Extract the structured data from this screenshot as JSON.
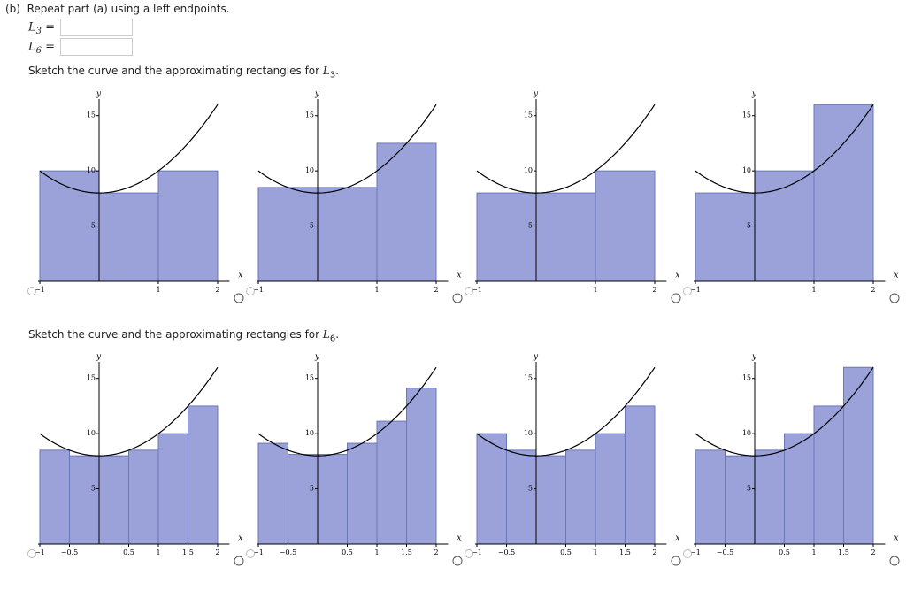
{
  "header": {
    "part": "(b)",
    "text": "Repeat part (a) using a left endpoints."
  },
  "fields": [
    {
      "symbol": "L",
      "sub": "3",
      "eq": "="
    },
    {
      "symbol": "L",
      "sub": "6",
      "eq": "="
    }
  ],
  "sections": [
    {
      "prompt": "Sketch the curve and the approximating rectangles for",
      "symbol": "L",
      "sub": "3",
      "end": ".",
      "charts": [
        {
          "type": "bar",
          "x_label": "x",
          "y_label": "y",
          "curve_coefficients": [
            8,
            0,
            2
          ],
          "bins": [
            -1,
            0,
            1,
            2
          ],
          "values": [
            10,
            8,
            10
          ],
          "xlim": [
            -1,
            2.2
          ],
          "ylim": [
            0,
            16.5
          ],
          "xticks": [
            {
              "value": -1,
              "label": "−1"
            },
            1,
            2
          ],
          "yticks": [
            5,
            10,
            15
          ],
          "color": "#9aa2d9"
        },
        {
          "type": "bar",
          "x_label": "x",
          "y_label": "y",
          "curve_coefficients": [
            8,
            0,
            2
          ],
          "bins": [
            -1,
            0,
            1,
            2
          ],
          "values": [
            8.5,
            8.5,
            12.5
          ],
          "xlim": [
            -1,
            2.2
          ],
          "ylim": [
            0,
            16.5
          ],
          "xticks": [
            {
              "value": -1,
              "label": "−1"
            },
            1,
            2
          ],
          "yticks": [
            5,
            10,
            15
          ],
          "color": "#9aa2d9"
        },
        {
          "type": "bar",
          "x_label": "x",
          "y_label": "y",
          "curve_coefficients": [
            8,
            0,
            2
          ],
          "bins": [
            -1,
            0,
            1,
            2
          ],
          "values": [
            8,
            8,
            10
          ],
          "xlim": [
            -1,
            2.2
          ],
          "ylim": [
            0,
            16.5
          ],
          "xticks": [
            {
              "value": -1,
              "label": "−1"
            },
            1,
            2
          ],
          "yticks": [
            5,
            10,
            15
          ],
          "color": "#9aa2d9"
        },
        {
          "type": "bar",
          "x_label": "x",
          "y_label": "y",
          "curve_coefficients": [
            8,
            0,
            2
          ],
          "bins": [
            -1,
            0,
            1,
            2
          ],
          "values": [
            8,
            10,
            16
          ],
          "xlim": [
            -1,
            2.2
          ],
          "ylim": [
            0,
            16.5
          ],
          "xticks": [
            {
              "value": -1,
              "label": "−1"
            },
            1,
            2
          ],
          "yticks": [
            5,
            10,
            15
          ],
          "color": "#9aa2d9"
        }
      ]
    },
    {
      "prompt": "Sketch the curve and the approximating rectangles for",
      "symbol": "L",
      "sub": "6",
      "end": ".",
      "charts": [
        {
          "type": "bar",
          "x_label": "x",
          "y_label": "y",
          "curve_coefficients": [
            8,
            0,
            2
          ],
          "bins": [
            -1,
            -0.5,
            0,
            0.5,
            1,
            1.5,
            2
          ],
          "values": [
            8.5,
            8,
            8,
            8.5,
            10,
            12.5
          ],
          "xlim": [
            -1,
            2.2
          ],
          "ylim": [
            0,
            16.5
          ],
          "xticks": [
            {
              "value": -1,
              "label": "−1"
            },
            {
              "value": -0.5,
              "label": "−0.5"
            },
            0.5,
            1,
            1.5,
            2
          ],
          "yticks": [
            5,
            10,
            15
          ],
          "color": "#9aa2d9"
        },
        {
          "type": "bar",
          "x_label": "x",
          "y_label": "y",
          "curve_coefficients": [
            8,
            0,
            2
          ],
          "bins": [
            -1,
            -0.5,
            0,
            0.5,
            1,
            1.5,
            2
          ],
          "values": [
            9.125,
            8.125,
            8.125,
            9.125,
            11.125,
            14.125
          ],
          "xlim": [
            -1,
            2.2
          ],
          "ylim": [
            0,
            16.5
          ],
          "xticks": [
            {
              "value": -1,
              "label": "−1"
            },
            {
              "value": -0.5,
              "label": "−0.5"
            },
            0.5,
            1,
            1.5,
            2
          ],
          "yticks": [
            5,
            10,
            15
          ],
          "color": "#9aa2d9"
        },
        {
          "type": "bar",
          "x_label": "x",
          "y_label": "y",
          "curve_coefficients": [
            8,
            0,
            2
          ],
          "bins": [
            -1,
            -0.5,
            0,
            0.5,
            1,
            1.5,
            2
          ],
          "values": [
            10,
            8.5,
            8,
            8.5,
            10,
            12.5
          ],
          "xlim": [
            -1,
            2.2
          ],
          "ylim": [
            0,
            16.5
          ],
          "xticks": [
            {
              "value": -1,
              "label": "−1"
            },
            {
              "value": -0.5,
              "label": "−0.5"
            },
            0.5,
            1,
            1.5,
            2
          ],
          "yticks": [
            5,
            10,
            15
          ],
          "color": "#9aa2d9"
        },
        {
          "type": "bar",
          "x_label": "x",
          "y_label": "y",
          "curve_coefficients": [
            8,
            0,
            2
          ],
          "bins": [
            -1,
            -0.5,
            0,
            0.5,
            1,
            1.5,
            2
          ],
          "values": [
            8.5,
            8,
            8.5,
            10,
            12.5,
            16
          ],
          "xlim": [
            -1,
            2.2
          ],
          "ylim": [
            0,
            16.5
          ],
          "xticks": [
            {
              "value": -1,
              "label": "−1"
            },
            {
              "value": -0.5,
              "label": "−0.5"
            },
            0.5,
            1,
            1.5,
            2
          ],
          "yticks": [
            5,
            10,
            15
          ],
          "color": "#9aa2d9"
        }
      ]
    }
  ]
}
